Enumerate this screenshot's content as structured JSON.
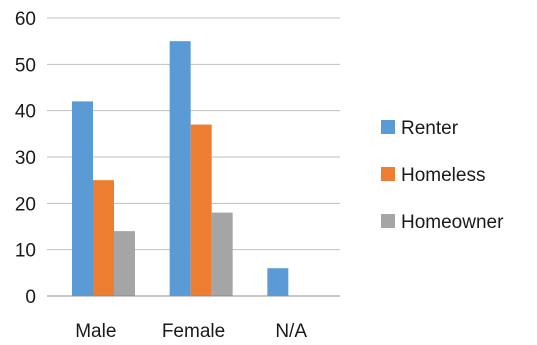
{
  "chart_data": {
    "type": "bar",
    "categories": [
      "Male",
      "Female",
      "N/A"
    ],
    "series": [
      {
        "name": "Renter",
        "color": "#5b9bd5",
        "values": [
          42,
          55,
          6
        ]
      },
      {
        "name": "Homeless",
        "color": "#ed7d31",
        "values": [
          25,
          37,
          0
        ]
      },
      {
        "name": "Homeowner",
        "color": "#a5a5a5",
        "values": [
          14,
          18,
          0
        ]
      }
    ],
    "ylim": [
      0,
      60
    ],
    "yticks": [
      0,
      10,
      20,
      30,
      40,
      50,
      60
    ],
    "grid": true,
    "legend_position": "right"
  }
}
